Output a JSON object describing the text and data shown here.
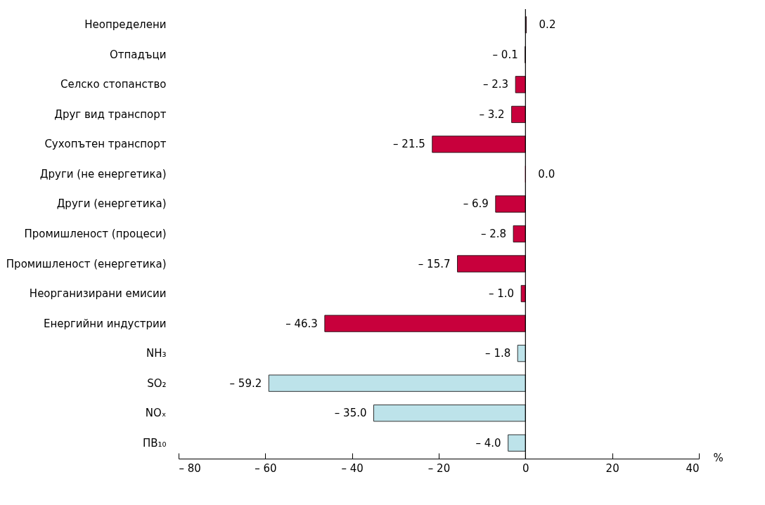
{
  "chart_data": {
    "type": "bar",
    "orientation": "horizontal",
    "xlabel": "%",
    "categories": [
      "Неопределени",
      "Отпадъци",
      "Селско стопанство",
      "Друг вид транспорт",
      "Сухопътен транспорт",
      "Други (не енергетика)",
      "Други (енергетика)",
      "Промишленост (процеси)",
      "Промишленост (енергетика)",
      "Неорганизирани емисии",
      "Енергийни индустрии",
      "NH₃",
      "SO₂",
      "NOₓ",
      "ПВ₁₀"
    ],
    "values": [
      0.2,
      -0.1,
      -2.3,
      -3.2,
      -21.5,
      0.0,
      -6.9,
      -2.8,
      -15.7,
      -1.0,
      -46.3,
      -1.8,
      -59.2,
      -35.0,
      -4.0
    ],
    "value_labels": [
      "0.2",
      "– 0.1",
      "– 2.3",
      "– 3.2",
      "– 21.5",
      "0.0",
      "– 6.9",
      "– 2.8",
      "– 15.7",
      "– 1.0",
      "– 46.3",
      "– 1.8",
      "– 59.2",
      "– 35.0",
      "– 4.0"
    ],
    "colors": [
      "#c8003c",
      "#c8003c",
      "#c8003c",
      "#c8003c",
      "#c8003c",
      "#c8003c",
      "#c8003c",
      "#c8003c",
      "#c8003c",
      "#c8003c",
      "#c8003c",
      "#bde3ea",
      "#bde3ea",
      "#bde3ea",
      "#bde3ea"
    ],
    "xlim": [
      -80,
      40
    ],
    "xticks": [
      {
        "value": -80,
        "label": "– 80"
      },
      {
        "value": -60,
        "label": "– 60"
      },
      {
        "value": -40,
        "label": "– 40"
      },
      {
        "value": -20,
        "label": "– 20"
      },
      0,
      20,
      40
    ],
    "ref_lines": [
      {
        "axis": "x",
        "value": 0,
        "color": "#000000"
      }
    ],
    "grid": false
  }
}
